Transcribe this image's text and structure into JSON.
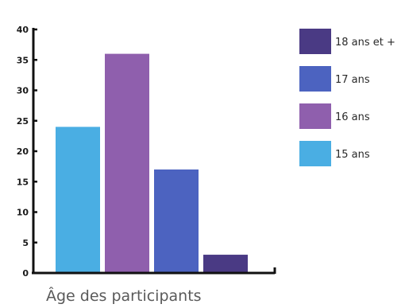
{
  "chart_data": {
    "type": "bar",
    "categories": [
      "15 ans",
      "16 ans",
      "17 ans",
      "18 ans et +"
    ],
    "values": [
      24,
      36,
      17,
      3
    ],
    "xlabel": "Âge des participants",
    "ylabel": "",
    "ylim": [
      0,
      40
    ],
    "yticks": [
      0,
      5,
      10,
      15,
      20,
      25,
      30,
      35,
      40
    ],
    "grid": false,
    "legend_position": "right",
    "legend_order": [
      "18 ans et +",
      "17 ans",
      "16 ans",
      "15 ans"
    ],
    "colors": {
      "15 ans": "#4aaee3",
      "16 ans": "#8f5fad",
      "17 ans": "#4c63c0",
      "18 ans et +": "#4a3a84"
    },
    "axis_color": "#111111"
  }
}
